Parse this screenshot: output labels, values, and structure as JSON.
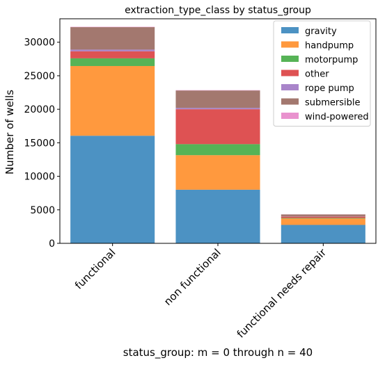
{
  "chart_data": {
    "type": "bar",
    "stacked": true,
    "title": "extraction_type_class by status_group",
    "xlabel": "status_group: m = 0 through n = 40",
    "ylabel": "Number of wells",
    "categories": [
      "functional",
      "non functional",
      "functional needs repair"
    ],
    "ylim": [
      0,
      33500
    ],
    "yticks": [
      0,
      5000,
      10000,
      15000,
      20000,
      25000,
      30000
    ],
    "grid": false,
    "legend_position": "top-right",
    "series": [
      {
        "name": "gravity",
        "color": "#1f77b4",
        "values": [
          16050,
          8000,
          2750
        ]
      },
      {
        "name": "handpump",
        "color": "#ff7f0e",
        "values": [
          10400,
          5150,
          950
        ]
      },
      {
        "name": "motorpump",
        "color": "#2ca02c",
        "values": [
          1150,
          1650,
          80
        ]
      },
      {
        "name": "other",
        "color": "#d62728",
        "values": [
          1050,
          5200,
          200
        ]
      },
      {
        "name": "rope pump",
        "color": "#9467bd",
        "values": [
          250,
          200,
          30
        ]
      },
      {
        "name": "submersible",
        "color": "#8c564b",
        "values": [
          3350,
          2600,
          300
        ]
      },
      {
        "name": "wind-powered",
        "color": "#e377c2",
        "values": [
          50,
          50,
          10
        ]
      }
    ]
  }
}
